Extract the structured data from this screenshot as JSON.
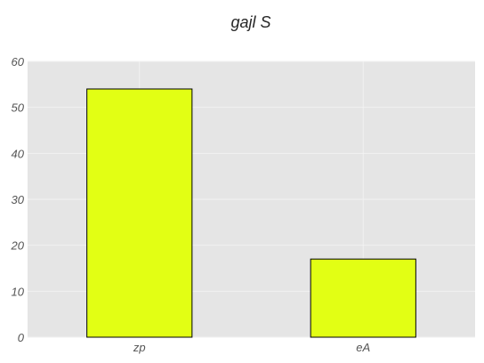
{
  "chart_data": {
    "type": "bar",
    "title": "gajl S",
    "categories": [
      "zp",
      "eA"
    ],
    "values": [
      54,
      17
    ],
    "ylim": [
      0,
      60
    ],
    "yticks": [
      0,
      10,
      20,
      30,
      40,
      50,
      60
    ],
    "grid": true,
    "colors": {
      "bar_fill": "#e2ff14",
      "bar_edge": "#000000",
      "plot_bg": "#e5e5e5",
      "grid": "#f2f2f2"
    }
  }
}
